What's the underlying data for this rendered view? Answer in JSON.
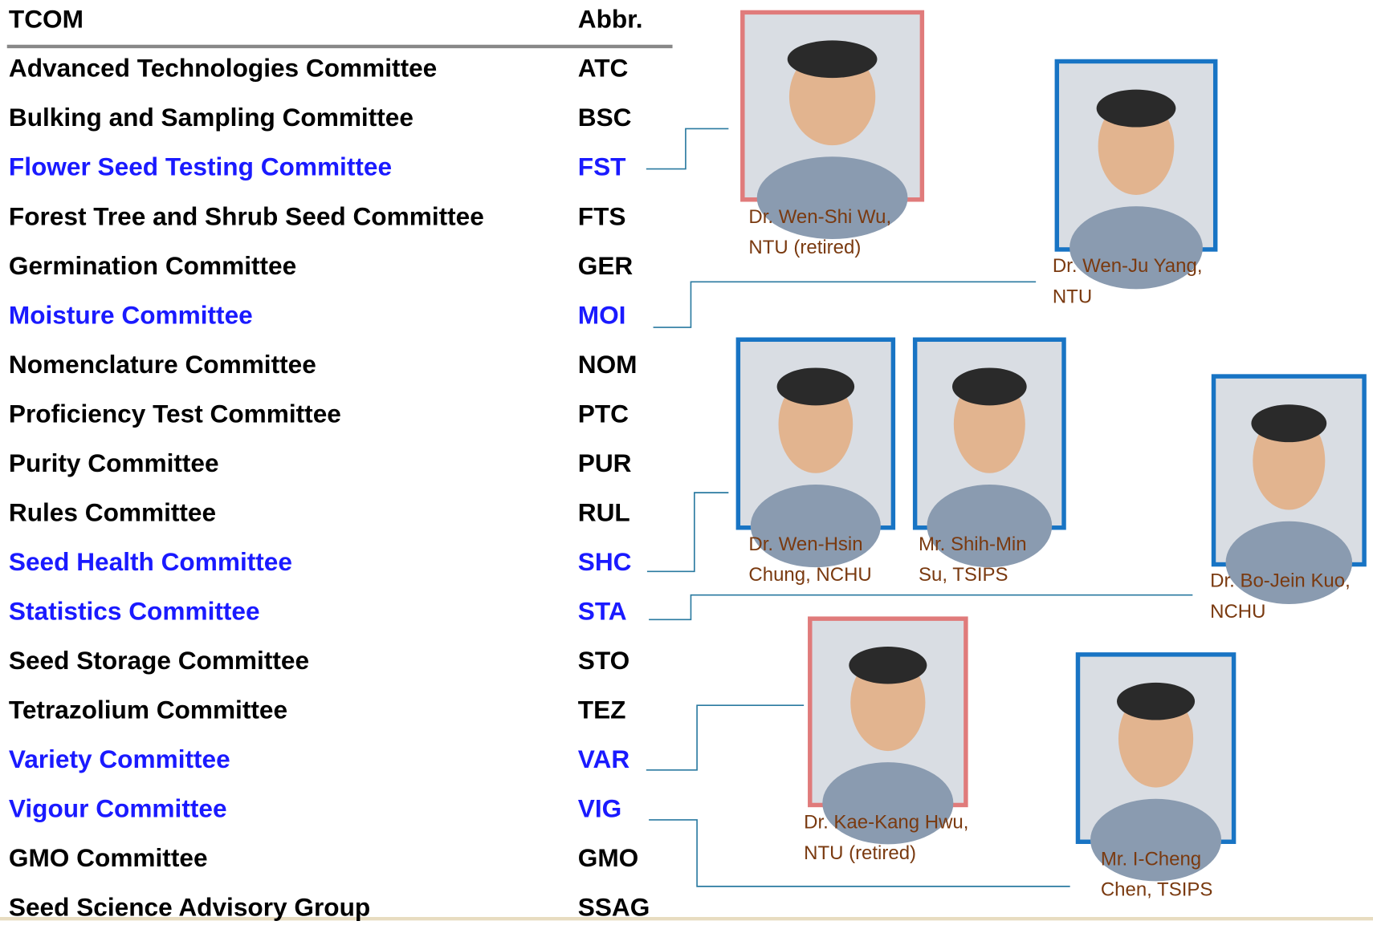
{
  "table": {
    "header": [
      "TCOM",
      "Abbr."
    ],
    "rows": [
      {
        "name": "Advanced Technologies Committee",
        "abbr": "ATC",
        "color": "#000000"
      },
      {
        "name": "Bulking and Sampling Committee",
        "abbr": "BSC",
        "color": "#000000"
      },
      {
        "name": "Flower Seed Testing Committee",
        "abbr": "FST",
        "color": "#1a1aff"
      },
      {
        "name": "Forest Tree and Shrub Seed Committee",
        "abbr": "FTS",
        "color": "#000000"
      },
      {
        "name": "Germination Committee",
        "abbr": "GER",
        "color": "#000000"
      },
      {
        "name": "Moisture Committee",
        "abbr": "MOI",
        "color": "#1a1aff"
      },
      {
        "name": "Nomenclature Committee",
        "abbr": "NOM",
        "color": "#000000"
      },
      {
        "name": "Proficiency Test Committee",
        "abbr": "PTC",
        "color": "#000000"
      },
      {
        "name": "Purity Committee",
        "abbr": "PUR",
        "color": "#000000"
      },
      {
        "name": "Rules Committee",
        "abbr": "RUL",
        "color": "#000000"
      },
      {
        "name": "Seed Health Committee",
        "abbr": "SHC",
        "color": "#1a1aff"
      },
      {
        "name": "Statistics Committee",
        "abbr": "STA",
        "color": "#1a1aff"
      },
      {
        "name": "Seed Storage Committee",
        "abbr": "STO",
        "color": "#000000"
      },
      {
        "name": "Tetrazolium Committee",
        "abbr": "TEZ",
        "color": "#000000"
      },
      {
        "name": "Variety Committee",
        "abbr": "VAR",
        "color": "#1a1aff"
      },
      {
        "name": "Vigour Committee",
        "abbr": "VIG",
        "color": "#1a1aff"
      },
      {
        "name": "GMO Committee",
        "abbr": "GMO",
        "color": "#000000"
      },
      {
        "name": "Seed Science Advisory Group",
        "abbr": "SSAG",
        "color": "#000000"
      }
    ]
  },
  "people": [
    {
      "lines": [
        "Dr. Wen-Shi Wu,",
        "NTU (retired)"
      ],
      "border": "#e07b7b"
    },
    {
      "lines": [
        "Dr. Wen-Ju Yang,",
        "NTU"
      ],
      "border": "#1874c4"
    },
    {
      "lines": [
        "Dr. Wen-Hsin",
        "Chung, NCHU"
      ],
      "border": "#1874c4"
    },
    {
      "lines": [
        "Mr. Shih-Min",
        "Su, TSIPS"
      ],
      "border": "#1874c4"
    },
    {
      "lines": [
        "Dr. Bo-Jein Kuo,",
        "NCHU"
      ],
      "border": "#1874c4"
    },
    {
      "lines": [
        "Dr. Kae-Kang Hwu,",
        "NTU (retired)"
      ],
      "border": "#e07b7b"
    },
    {
      "lines": [
        "Mr. I-Cheng",
        "Chen, TSIPS"
      ],
      "border": "#1874c4"
    }
  ]
}
